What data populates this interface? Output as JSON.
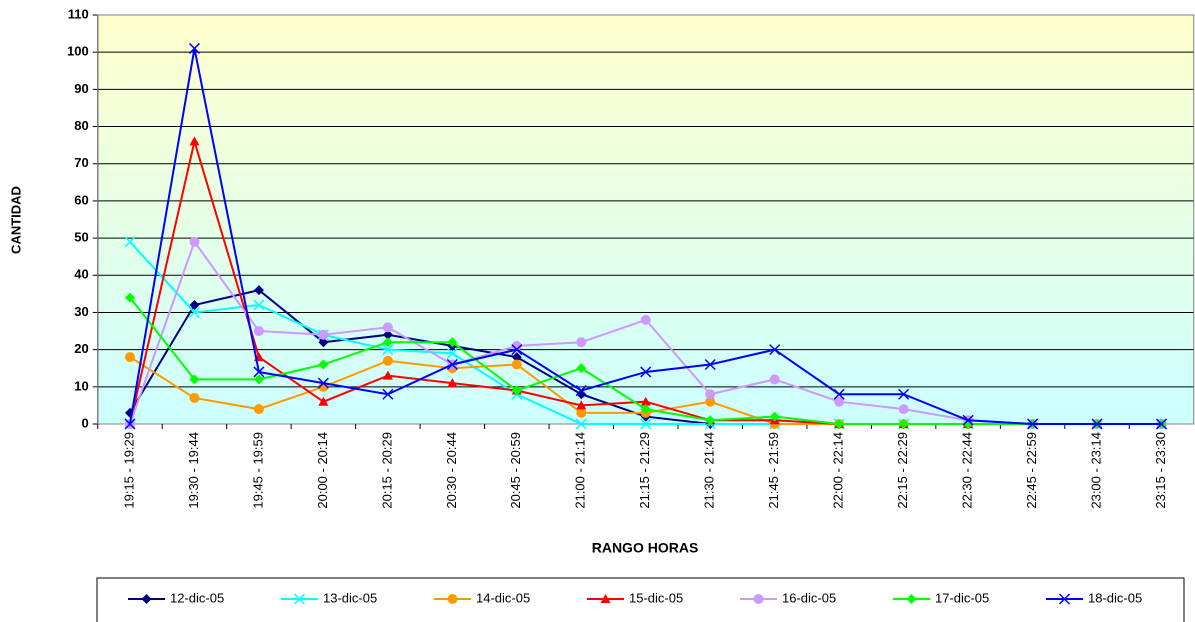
{
  "chart_data": {
    "type": "line",
    "x_label": "RANGO HORAS",
    "y_label": "CANTIDAD",
    "categories": [
      "19:15 - 19:29",
      "19:30 - 19:44",
      "19:45 - 19:59",
      "20:00 - 20:14",
      "20:15 - 20:29",
      "20:30 - 20:44",
      "20:45 - 20:59",
      "21:00 - 21:14",
      "21:15 - 21:29",
      "21:30 - 21:44",
      "21:45 - 21:59",
      "22:00 - 22:14",
      "22:15 - 22:29",
      "22:30 - 22:44",
      "22:45 - 22:59",
      "23:00 - 23:14",
      "23:15 - 23:30"
    ],
    "ylim": [
      0,
      110
    ],
    "yticks": [
      0,
      10,
      20,
      30,
      40,
      50,
      60,
      70,
      80,
      90,
      100,
      110
    ],
    "grid": true,
    "legend": "bottom",
    "series": [
      {
        "name": "12-dic-05",
        "color": "#000080",
        "marker": "diamond",
        "values": [
          3,
          32,
          36,
          22,
          24,
          21,
          18,
          8,
          2,
          0,
          0,
          0,
          0,
          0,
          0,
          0,
          0
        ]
      },
      {
        "name": "13-dic-05",
        "color": "#00ffff",
        "marker": "x",
        "values": [
          49,
          30,
          32,
          24,
          20,
          19,
          8,
          0,
          0,
          0,
          0,
          0,
          0,
          0,
          0,
          0,
          0
        ]
      },
      {
        "name": "14-dic-05",
        "color": "#ff9900",
        "marker": "circle",
        "values": [
          18,
          7,
          4,
          10,
          17,
          15,
          16,
          3,
          3,
          6,
          0,
          0,
          0,
          0,
          0,
          0,
          0
        ]
      },
      {
        "name": "15-dic-05",
        "color": "#ff0000",
        "marker": "triangle",
        "values": [
          0,
          76,
          18,
          6,
          13,
          11,
          9,
          5,
          6,
          1,
          1,
          0,
          0,
          0,
          0,
          0,
          0
        ]
      },
      {
        "name": "16-dic-05",
        "color": "#cc99ff",
        "marker": "circle",
        "values": [
          0,
          49,
          25,
          24,
          26,
          16,
          21,
          22,
          28,
          8,
          12,
          6,
          4,
          1,
          0,
          0,
          0
        ]
      },
      {
        "name": "17-dic-05",
        "color": "#00ff00",
        "marker": "diamond",
        "values": [
          34,
          12,
          12,
          16,
          22,
          22,
          9,
          15,
          4,
          1,
          2,
          0,
          0,
          0,
          0,
          0,
          0
        ]
      },
      {
        "name": "18-dic-05",
        "color": "#0000ff",
        "marker": "x",
        "values": [
          0,
          101,
          14,
          11,
          8,
          16,
          20,
          9,
          14,
          16,
          20,
          8,
          8,
          1,
          0,
          0,
          0
        ]
      }
    ]
  }
}
